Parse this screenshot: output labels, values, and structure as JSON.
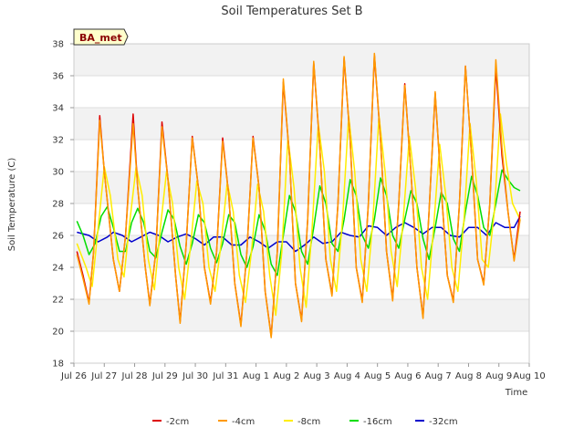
{
  "chart_data": {
    "type": "line",
    "title": "Soil Temperatures Set B",
    "xlabel": "Time",
    "ylabel": "Soil Temperature (C)",
    "badge": "BA_met",
    "ylim": [
      18,
      38
    ],
    "yticks": [
      18,
      20,
      22,
      24,
      26,
      28,
      30,
      32,
      34,
      36,
      38
    ],
    "xlim": [
      0,
      15
    ],
    "xtick_labels": [
      "Jul 26",
      "Jul 27",
      "Jul 28",
      "Jul 29",
      "Jul 30",
      "Jul 31",
      "Aug 1",
      "Aug 2",
      "Aug 3",
      "Aug 4",
      "Aug 5",
      "Aug 6",
      "Aug 7",
      "Aug 8",
      "Aug 9",
      "Aug 10"
    ],
    "grid": "horizontal bands",
    "legend_position": "bottom",
    "x_units": "days since Jul 26 00:00",
    "series": [
      {
        "name": "-2cm",
        "color": "#dd0000",
        "x": [
          0.1,
          0.3,
          0.5,
          0.65,
          0.85,
          1.0,
          1.3,
          1.5,
          1.7,
          1.95,
          2.1,
          2.35,
          2.5,
          2.7,
          2.9,
          3.1,
          3.35,
          3.5,
          3.7,
          3.9,
          4.1,
          4.3,
          4.5,
          4.7,
          4.9,
          5.1,
          5.3,
          5.5,
          5.7,
          5.9,
          6.1,
          6.3,
          6.5,
          6.7,
          6.9,
          7.1,
          7.3,
          7.5,
          7.7,
          7.9,
          8.1,
          8.3,
          8.5,
          8.7,
          8.9,
          9.1,
          9.3,
          9.5,
          9.7,
          9.9,
          10.1,
          10.3,
          10.5,
          10.7,
          10.9,
          11.1,
          11.3,
          11.5,
          11.7,
          11.9,
          12.1,
          12.3,
          12.5,
          12.7,
          12.9,
          13.1,
          13.3,
          13.5,
          13.7,
          13.9,
          14.1,
          14.3,
          14.5,
          14.7
        ],
        "y": [
          25.0,
          23.5,
          21.8,
          25.0,
          33.5,
          30.0,
          24.5,
          22.5,
          26.0,
          33.6,
          29.0,
          24.0,
          21.7,
          25.0,
          33.1,
          29.5,
          23.5,
          20.6,
          25.5,
          32.2,
          29.0,
          24.0,
          21.8,
          25.0,
          32.1,
          28.5,
          23.0,
          20.4,
          25.0,
          32.2,
          29.0,
          22.5,
          19.7,
          25.0,
          35.6,
          31.0,
          23.0,
          20.7,
          27.0,
          36.8,
          31.5,
          24.5,
          22.3,
          28.0,
          37.1,
          32.0,
          24.0,
          21.9,
          28.0,
          37.3,
          32.0,
          25.0,
          22.0,
          28.0,
          35.5,
          30.0,
          24.0,
          20.9,
          27.5,
          34.9,
          29.0,
          23.5,
          21.9,
          28.0,
          36.6,
          31.0,
          24.5,
          23.0,
          28.0,
          36.5,
          31.0,
          27.5,
          24.5,
          27.5
        ]
      },
      {
        "name": "-4cm",
        "color": "#ff9900",
        "x": [
          0.1,
          0.3,
          0.5,
          0.65,
          0.85,
          1.0,
          1.3,
          1.5,
          1.7,
          1.95,
          2.1,
          2.35,
          2.5,
          2.7,
          2.9,
          3.1,
          3.35,
          3.5,
          3.7,
          3.9,
          4.1,
          4.3,
          4.5,
          4.7,
          4.9,
          5.1,
          5.3,
          5.5,
          5.7,
          5.9,
          6.1,
          6.3,
          6.5,
          6.7,
          6.9,
          7.1,
          7.3,
          7.5,
          7.7,
          7.9,
          8.1,
          8.3,
          8.5,
          8.7,
          8.9,
          9.1,
          9.3,
          9.5,
          9.7,
          9.9,
          10.1,
          10.3,
          10.5,
          10.7,
          10.9,
          11.1,
          11.3,
          11.5,
          11.7,
          11.9,
          12.1,
          12.3,
          12.5,
          12.7,
          12.9,
          13.1,
          13.3,
          13.5,
          13.7,
          13.9,
          14.1,
          14.3,
          14.5,
          14.7
        ],
        "y": [
          24.8,
          23.3,
          21.7,
          25.0,
          33.2,
          30.0,
          24.5,
          22.5,
          26.0,
          33.0,
          29.0,
          24.0,
          21.6,
          25.0,
          32.8,
          29.5,
          23.5,
          20.5,
          25.5,
          32.1,
          29.0,
          24.0,
          21.7,
          25.0,
          31.9,
          28.5,
          23.0,
          20.3,
          25.0,
          32.1,
          29.0,
          22.5,
          19.6,
          25.0,
          35.8,
          31.0,
          23.0,
          20.6,
          27.0,
          36.9,
          31.5,
          24.5,
          22.2,
          28.0,
          37.2,
          32.0,
          24.0,
          21.8,
          28.0,
          37.4,
          32.0,
          25.0,
          21.9,
          28.0,
          35.4,
          30.0,
          24.0,
          20.8,
          27.5,
          35.0,
          29.0,
          23.5,
          21.8,
          28.0,
          36.6,
          31.0,
          24.5,
          22.9,
          28.0,
          37.0,
          31.5,
          27.5,
          24.4,
          27.0
        ]
      },
      {
        "name": "-8cm",
        "color": "#ffee00",
        "x": [
          0.1,
          0.4,
          0.6,
          0.8,
          1.0,
          1.2,
          1.45,
          1.65,
          1.85,
          2.05,
          2.25,
          2.45,
          2.65,
          2.85,
          3.05,
          3.25,
          3.45,
          3.65,
          3.85,
          4.05,
          4.25,
          4.45,
          4.65,
          4.85,
          5.05,
          5.25,
          5.45,
          5.65,
          5.85,
          6.05,
          6.25,
          6.45,
          6.65,
          6.85,
          7.05,
          7.25,
          7.45,
          7.65,
          7.85,
          8.05,
          8.25,
          8.45,
          8.65,
          8.85,
          9.05,
          9.25,
          9.45,
          9.65,
          9.85,
          10.05,
          10.25,
          10.45,
          10.65,
          10.85,
          11.05,
          11.25,
          11.45,
          11.65,
          11.85,
          12.05,
          12.25,
          12.45,
          12.65,
          12.85,
          13.05,
          13.25,
          13.45,
          13.65,
          13.85,
          14.05,
          14.25,
          14.45,
          14.7
        ],
        "y": [
          25.5,
          24.0,
          22.8,
          26.5,
          30.3,
          28.5,
          24.5,
          23.4,
          27.0,
          30.3,
          28.5,
          24.5,
          22.6,
          26.5,
          30.0,
          28.0,
          24.0,
          22.0,
          25.5,
          29.4,
          28.0,
          24.0,
          22.5,
          25.5,
          29.3,
          27.5,
          23.5,
          21.8,
          25.0,
          29.2,
          27.5,
          23.5,
          21.0,
          25.0,
          32.1,
          29.0,
          24.0,
          21.5,
          26.5,
          33.0,
          30.0,
          24.5,
          22.5,
          27.0,
          33.5,
          30.0,
          24.5,
          22.5,
          27.0,
          33.5,
          30.0,
          25.0,
          22.8,
          27.0,
          32.2,
          29.0,
          24.0,
          22.0,
          26.5,
          31.7,
          28.5,
          24.0,
          22.5,
          27.0,
          33.0,
          29.5,
          24.5,
          24.0,
          27.5,
          33.6,
          30.5,
          28.0,
          27.0
        ]
      },
      {
        "name": "-16cm",
        "color": "#00dd00",
        "x": [
          0.1,
          0.3,
          0.5,
          0.7,
          0.9,
          1.1,
          1.3,
          1.5,
          1.7,
          1.9,
          2.1,
          2.3,
          2.5,
          2.7,
          2.9,
          3.1,
          3.3,
          3.5,
          3.7,
          3.9,
          4.1,
          4.3,
          4.5,
          4.7,
          4.9,
          5.1,
          5.3,
          5.5,
          5.7,
          5.9,
          6.1,
          6.3,
          6.5,
          6.7,
          6.9,
          7.1,
          7.3,
          7.5,
          7.7,
          7.9,
          8.1,
          8.3,
          8.5,
          8.7,
          8.9,
          9.1,
          9.3,
          9.5,
          9.7,
          9.9,
          10.1,
          10.3,
          10.5,
          10.7,
          10.9,
          11.1,
          11.3,
          11.5,
          11.7,
          11.9,
          12.1,
          12.3,
          12.5,
          12.7,
          12.9,
          13.1,
          13.3,
          13.5,
          13.7,
          13.9,
          14.1,
          14.3,
          14.5,
          14.7
        ],
        "y": [
          26.9,
          26.0,
          24.8,
          25.5,
          27.2,
          27.8,
          26.5,
          25.0,
          25.0,
          26.8,
          27.7,
          26.8,
          25.0,
          24.6,
          26.2,
          27.6,
          27.0,
          25.3,
          24.2,
          25.5,
          27.3,
          26.8,
          25.2,
          24.3,
          25.5,
          27.3,
          26.8,
          24.8,
          24.0,
          25.3,
          27.3,
          26.3,
          24.2,
          23.5,
          26.0,
          28.5,
          27.5,
          25.0,
          24.2,
          26.5,
          29.1,
          28.0,
          25.5,
          25.0,
          27.0,
          29.5,
          28.5,
          26.0,
          25.2,
          27.0,
          29.6,
          28.5,
          26.0,
          25.2,
          27.0,
          28.8,
          28.0,
          25.8,
          24.5,
          26.5,
          28.7,
          28.0,
          25.8,
          25.0,
          27.5,
          29.7,
          28.5,
          26.5,
          26.0,
          28.0,
          30.1,
          29.5,
          29.0,
          28.8
        ]
      },
      {
        "name": "-32cm",
        "color": "#0000cc",
        "x": [
          0.1,
          0.5,
          0.8,
          1.1,
          1.3,
          1.6,
          1.9,
          2.2,
          2.5,
          2.8,
          3.1,
          3.4,
          3.7,
          4.0,
          4.3,
          4.6,
          4.9,
          5.2,
          5.5,
          5.8,
          6.1,
          6.4,
          6.7,
          7.0,
          7.3,
          7.6,
          7.9,
          8.2,
          8.5,
          8.8,
          9.1,
          9.4,
          9.7,
          10.0,
          10.3,
          10.6,
          10.9,
          11.2,
          11.5,
          11.8,
          12.1,
          12.4,
          12.7,
          13.0,
          13.3,
          13.6,
          13.9,
          14.2,
          14.5,
          14.7
        ],
        "y": [
          26.2,
          26.0,
          25.6,
          25.9,
          26.2,
          26.0,
          25.6,
          25.9,
          26.2,
          26.0,
          25.6,
          25.9,
          26.1,
          25.8,
          25.4,
          25.9,
          25.9,
          25.4,
          25.4,
          25.9,
          25.6,
          25.2,
          25.6,
          25.6,
          25.0,
          25.4,
          25.9,
          25.5,
          25.6,
          26.2,
          26.0,
          25.9,
          26.6,
          26.5,
          26.0,
          26.5,
          26.8,
          26.5,
          26.1,
          26.5,
          26.5,
          26.0,
          25.9,
          26.5,
          26.5,
          26.0,
          26.8,
          26.5,
          26.5,
          27.2
        ]
      }
    ]
  }
}
